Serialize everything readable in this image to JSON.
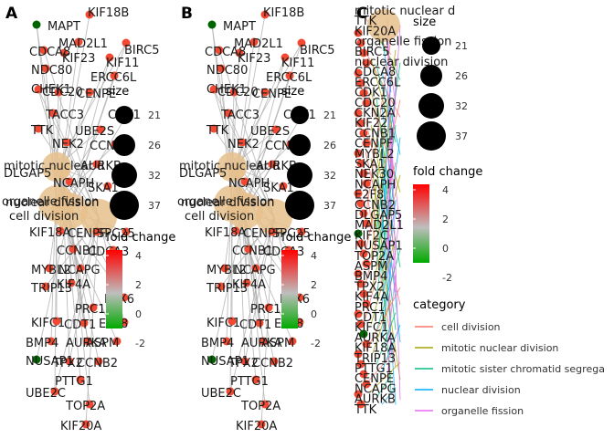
{
  "chart_data": {
    "type": "network",
    "panels": [
      {
        "tag": "A"
      },
      {
        "tag": "B"
      },
      {
        "tag": "C"
      }
    ],
    "size_legend": {
      "title": "size",
      "values": [
        21,
        26,
        32,
        37
      ]
    },
    "color_legend": {
      "title": "fold change",
      "ticks": [
        4,
        2,
        0,
        -2
      ],
      "high_color": "#ff0000",
      "mid_color": "#bebebe",
      "low_color": "#00aa00"
    },
    "category_legend": {
      "title": "category",
      "items": [
        {
          "label": "cell division",
          "color": "#f8766d"
        },
        {
          "label": "mitotic nuclear division",
          "color": "#a3a500"
        },
        {
          "label": "mitotic sister chromatid segrega",
          "color": "#00bf7d"
        },
        {
          "label": "nuclear division",
          "color": "#00b0f6"
        },
        {
          "label": "organelle fission",
          "color": "#e76bf3"
        }
      ]
    },
    "categories": [
      {
        "label": "mitotic nuclear d",
        "size": 32
      },
      {
        "label": "DLGAP5",
        "size": 21
      },
      {
        "label": "organelle fission",
        "size": 37
      },
      {
        "label": "nuclear division",
        "size": 37
      },
      {
        "label": "cell division",
        "size": 37
      }
    ],
    "genes": [
      {
        "name": "MAPT",
        "fc": -2.6
      },
      {
        "name": "KIF18B",
        "fc": 2.1
      },
      {
        "name": "MAD2L1",
        "fc": 2.3
      },
      {
        "name": "BIRC5",
        "fc": 2.4
      },
      {
        "name": "CDCA8",
        "fc": 2.2
      },
      {
        "name": "KIF23",
        "fc": 2.5
      },
      {
        "name": "KIF11",
        "fc": 2.2
      },
      {
        "name": "NDC80",
        "fc": 2.3
      },
      {
        "name": "ERCC6L",
        "fc": 2.4
      },
      {
        "name": "CHEK1",
        "fc": 2.1
      },
      {
        "name": "CDC20",
        "fc": 2.6
      },
      {
        "name": "CENPE",
        "fc": 2.2
      },
      {
        "name": "TACC3",
        "fc": 2.0
      },
      {
        "name": "CDK1",
        "fc": 2.5
      },
      {
        "name": "TTK",
        "fc": 2.3
      },
      {
        "name": "UBE2S",
        "fc": 2.2
      },
      {
        "name": "NEK2",
        "fc": 2.4
      },
      {
        "name": "CCNA2",
        "fc": 2.3
      },
      {
        "name": "AURKB",
        "fc": 2.6
      },
      {
        "name": "NCAPH",
        "fc": 2.2
      },
      {
        "name": "SKA1",
        "fc": 2.4
      },
      {
        "name": "KIF18A",
        "fc": 2.5
      },
      {
        "name": "CENPF",
        "fc": 2.2
      },
      {
        "name": "SPC25",
        "fc": 2.3
      },
      {
        "name": "CCNB1",
        "fc": 2.4
      },
      {
        "name": "CDCA3",
        "fc": 2.1
      },
      {
        "name": "MYBL2",
        "fc": 2.2
      },
      {
        "name": "NCAPG",
        "fc": 2.6
      },
      {
        "name": "KIF4A",
        "fc": 2.5
      },
      {
        "name": "TRIP13",
        "fc": 2.3
      },
      {
        "name": "PAX6",
        "fc": 2.1
      },
      {
        "name": "PRC1",
        "fc": 2.4
      },
      {
        "name": "KIFC1",
        "fc": 2.2
      },
      {
        "name": "CDT1",
        "fc": 2.0
      },
      {
        "name": "E2F8",
        "fc": 2.3
      },
      {
        "name": "BMP4",
        "fc": 2.1
      },
      {
        "name": "AURKA",
        "fc": 2.4
      },
      {
        "name": "ASPM",
        "fc": 2.5
      },
      {
        "name": "NUSAP1",
        "fc": -2.6
      },
      {
        "name": "TPX2",
        "fc": 2.3
      },
      {
        "name": "CCNB2",
        "fc": 2.2
      },
      {
        "name": "PTTG1",
        "fc": 2.4
      },
      {
        "name": "UBE2C",
        "fc": 2.3
      },
      {
        "name": "TOP2A",
        "fc": 2.5
      },
      {
        "name": "KIF20A",
        "fc": 2.4
      }
    ],
    "c_panel_labels": [
      "mitotic nuclear d",
      "TTK",
      "KIF20A",
      "organelle fission",
      "BIRC5",
      "nuclear division",
      "CDCA8",
      "ERCC6L",
      "CDK1",
      "CDC20",
      "CKN2A",
      "KIF22",
      "CCNB1",
      "CENPF",
      "MYBL2",
      "SKA1",
      "NEK30",
      "NCAPH",
      "E2F8",
      "CCNB2",
      "DLGAP5",
      "MAD2L1",
      "KIF2C",
      "NUSAP1",
      "TOP2A",
      "ASPM",
      "BMP4",
      "TPX2",
      "KIF4A",
      "PRC1",
      "CDT1",
      "KIFC1",
      "AURKA",
      "KIF18A",
      "TRIP13",
      "PTTG1",
      "CENPE",
      "NCAPG",
      "AURKB",
      "TTK"
    ]
  }
}
